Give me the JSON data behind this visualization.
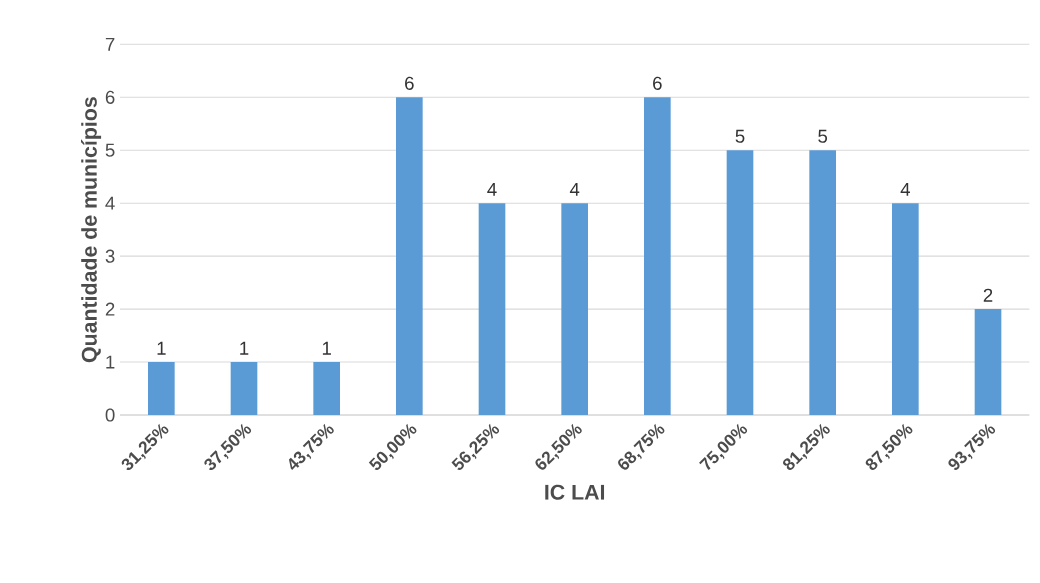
{
  "chart_data": {
    "type": "bar",
    "xlabel": "IC LAI",
    "ylabel": "Quantidade de municípios",
    "categories": [
      "31,25%",
      "37,50%",
      "43,75%",
      "50,00%",
      "56,25%",
      "62,50%",
      "68,75%",
      "75,00%",
      "81,25%",
      "87,50%",
      "93,75%"
    ],
    "values": [
      1,
      1,
      1,
      6,
      4,
      4,
      6,
      5,
      5,
      4,
      2
    ],
    "color": "#5b9bd5",
    "ylim": [
      0,
      7
    ],
    "yticks": [
      0,
      1,
      2,
      3,
      4,
      5,
      6,
      7
    ],
    "grid": "y",
    "data_labels": true
  }
}
